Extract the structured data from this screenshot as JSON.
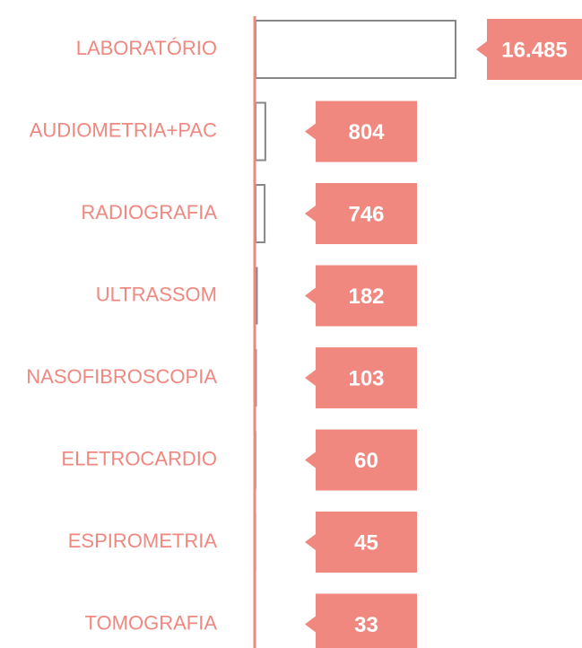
{
  "chart_data": {
    "type": "bar",
    "orientation": "horizontal",
    "categories": [
      "LABORATÓRIO",
      "AUDIOMETRIA+PAC",
      "RADIOGRAFIA",
      "ULTRASSOM",
      "NASOFIBROSCOPIA",
      "ELETROCARDIO",
      "ESPIROMETRIA",
      "TOMOGRAFIA"
    ],
    "values": [
      16485,
      804,
      746,
      182,
      103,
      60,
      45,
      33
    ],
    "value_labels": [
      "16.485",
      "804",
      "746",
      "182",
      "103",
      "60",
      "45",
      "33"
    ],
    "colors": [
      "#ffffff",
      "#ffffff",
      "#ffffff",
      "#888888",
      "#888888",
      "#888888",
      "#888888",
      "#888888"
    ],
    "label_color": "#f08880",
    "axis_color": "#f08880"
  }
}
